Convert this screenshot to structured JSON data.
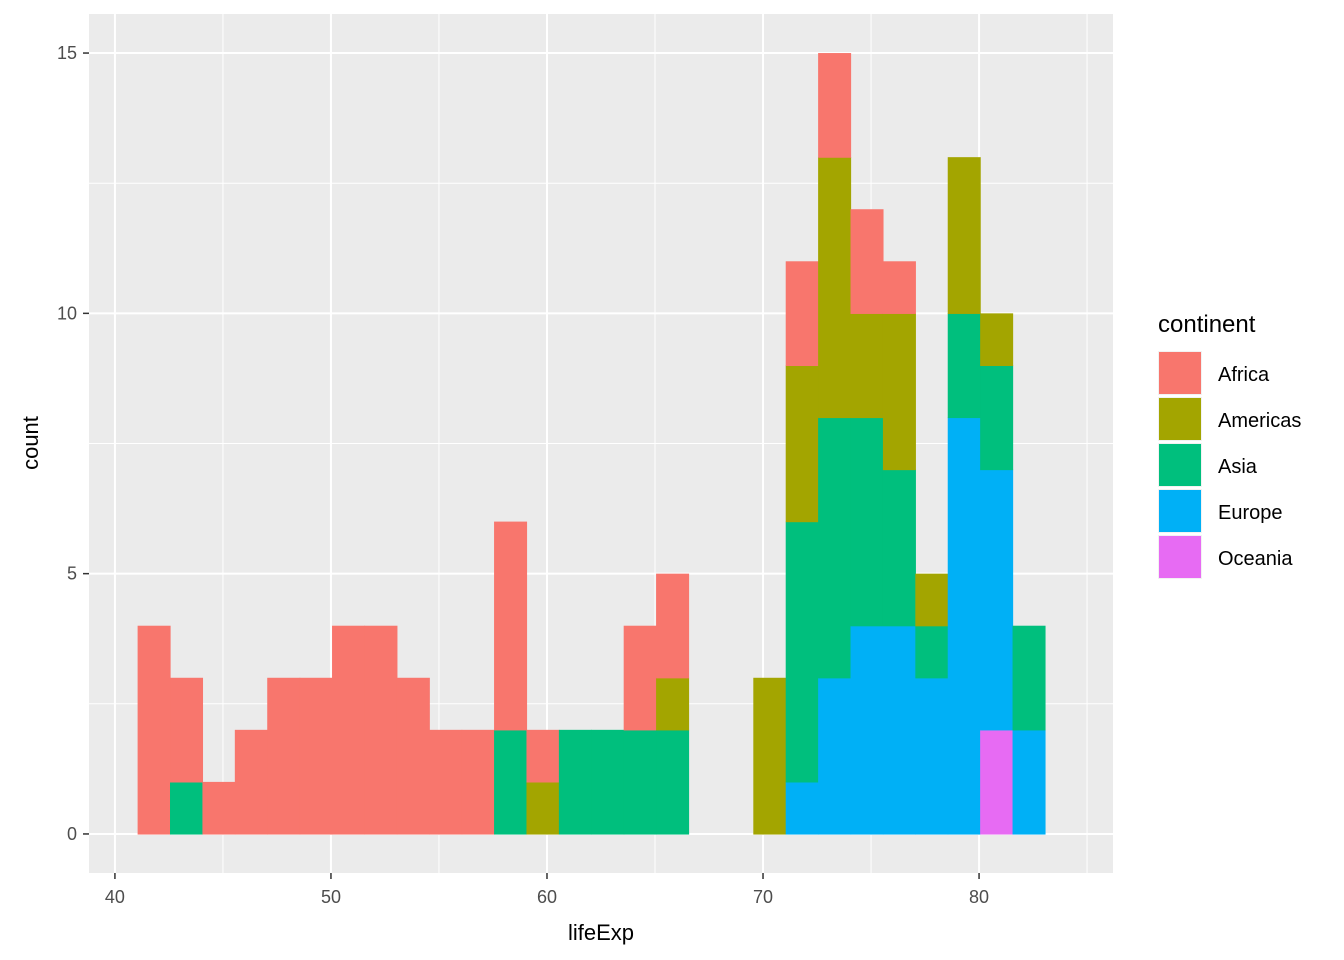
{
  "chart_data": {
    "type": "bar",
    "stacked": true,
    "bin_width": 1.5,
    "x": [
      41.8,
      43.3,
      44.8,
      46.3,
      47.8,
      49.3,
      50.8,
      52.3,
      53.8,
      55.3,
      56.8,
      58.3,
      59.8,
      61.3,
      62.8,
      64.3,
      65.8,
      67.3,
      68.8,
      70.3,
      71.8,
      73.3,
      74.8,
      76.3,
      77.8,
      79.3,
      80.8,
      82.3
    ],
    "series": [
      {
        "name": "Africa",
        "color": "#F8766D",
        "values": [
          4,
          2,
          1,
          2,
          3,
          3,
          4,
          4,
          3,
          2,
          2,
          4,
          1,
          0,
          0,
          2,
          2,
          0,
          0,
          0,
          2,
          2,
          2,
          1,
          0,
          0,
          0,
          0
        ]
      },
      {
        "name": "Americas",
        "color": "#A3A500",
        "values": [
          0,
          0,
          0,
          0,
          0,
          0,
          0,
          0,
          0,
          0,
          0,
          0,
          1,
          0,
          0,
          0,
          1,
          0,
          0,
          3,
          3,
          5,
          2,
          3,
          1,
          3,
          1,
          0
        ]
      },
      {
        "name": "Asia",
        "color": "#00BF7D",
        "values": [
          0,
          1,
          0,
          0,
          0,
          0,
          0,
          0,
          0,
          0,
          0,
          2,
          0,
          2,
          2,
          2,
          2,
          0,
          0,
          0,
          5,
          5,
          4,
          3,
          1,
          2,
          2,
          2
        ]
      },
      {
        "name": "Europe",
        "color": "#00B0F6",
        "values": [
          0,
          0,
          0,
          0,
          0,
          0,
          0,
          0,
          0,
          0,
          0,
          0,
          0,
          0,
          0,
          0,
          0,
          0,
          0,
          0,
          1,
          3,
          4,
          4,
          3,
          8,
          5,
          2
        ]
      },
      {
        "name": "Oceania",
        "color": "#E76BF3",
        "values": [
          0,
          0,
          0,
          0,
          0,
          0,
          0,
          0,
          0,
          0,
          0,
          0,
          0,
          0,
          0,
          0,
          0,
          0,
          0,
          0,
          0,
          0,
          0,
          0,
          0,
          0,
          2,
          0
        ]
      }
    ],
    "xlabel": "lifeExp",
    "ylabel": "count",
    "xlim": [
      38.8,
      86.2
    ],
    "ylim": [
      -0.75,
      15.75
    ],
    "x_ticks": [
      40,
      50,
      60,
      70,
      80
    ],
    "y_ticks": [
      0,
      5,
      10,
      15
    ],
    "x_tick_labels": [
      "40",
      "50",
      "60",
      "70",
      "80"
    ],
    "y_tick_labels": [
      "0",
      "5",
      "10",
      "15"
    ],
    "grid": true,
    "panel_background": "#EBEBEB",
    "legend": {
      "title": "continent",
      "position": "right"
    }
  }
}
